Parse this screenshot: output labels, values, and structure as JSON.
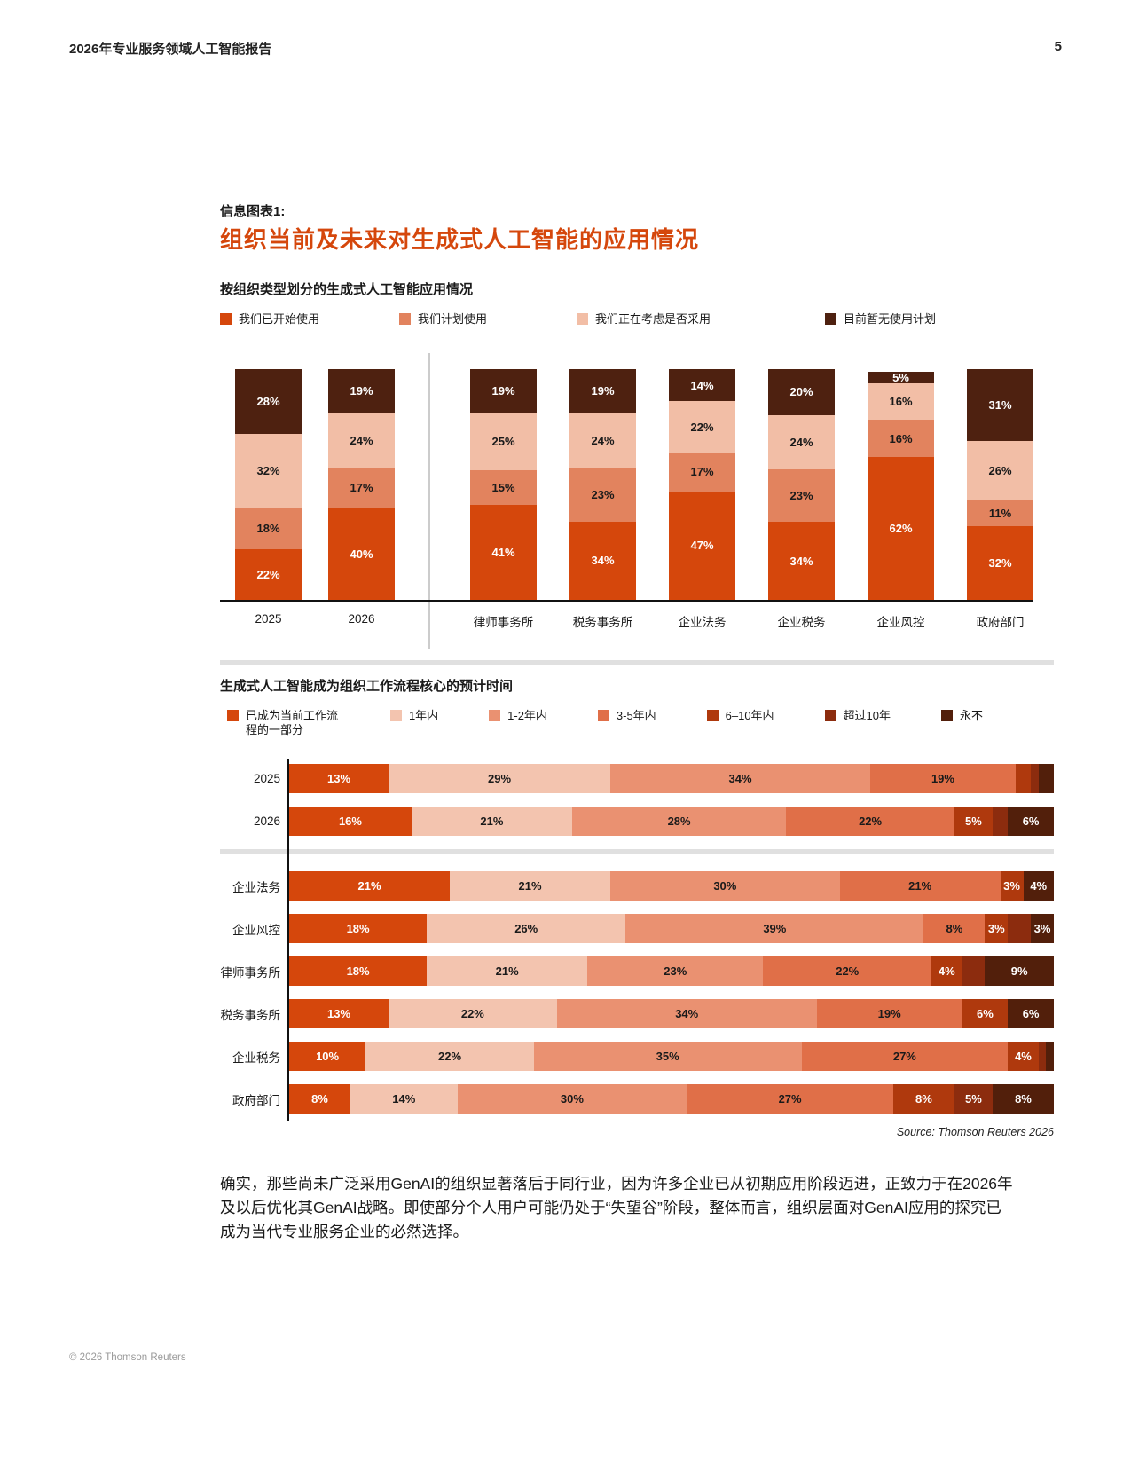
{
  "header": {
    "title": "2026年专业服务领域人工智能报告",
    "page_number": "5"
  },
  "infographic": {
    "label": "信息图表1:",
    "title": "组织当前及未来对生成式人工智能的应用情况"
  },
  "palette": {
    "started": "#D5470C",
    "plan": "#E2835E",
    "considering": "#F2BEA6",
    "no_plan": "#4E2110",
    "now": "#D5470C",
    "y1": "#F3C4AF",
    "y1_2": "#EA9171",
    "y3_5": "#E06F48",
    "y6_10": "#AF390D",
    "y10plus": "#8C2C0E",
    "never": "#521F0B"
  },
  "text_on": {
    "started": "#FFFFFF",
    "plan": "#1A1A1A",
    "considering": "#1A1A1A",
    "no_plan": "#FFFFFF",
    "now": "#FFFFFF",
    "y1": "#1A1A1A",
    "y1_2": "#1A1A1A",
    "y3_5": "#1A1A1A",
    "y6_10": "#FFFFFF",
    "y10plus": "#FFFFFF",
    "never": "#FFFFFF"
  },
  "chart_data": [
    {
      "type": "bar",
      "subtype": "vertical-stacked",
      "title": "按组织类型划分的生成式人工智能应用情况",
      "legend": [
        {
          "label": "我们已开始使用",
          "key": "started"
        },
        {
          "label": "我们计划使用",
          "key": "plan"
        },
        {
          "label": "我们正在考虑是否采用",
          "key": "considering"
        },
        {
          "label": "目前暂无使用计划",
          "key": "no_plan"
        }
      ],
      "categories": [
        "2025",
        "2026",
        "律师事务所",
        "税务事务所",
        "企业法务",
        "企业税务",
        "企业风控",
        "政府部门"
      ],
      "series": [
        {
          "name": "我们已开始使用",
          "values": [
            22,
            40,
            41,
            34,
            47,
            34,
            62,
            32
          ]
        },
        {
          "name": "我们计划使用",
          "values": [
            18,
            17,
            15,
            23,
            17,
            23,
            16,
            11
          ]
        },
        {
          "name": "我们正在考虑是否采用",
          "values": [
            32,
            24,
            25,
            24,
            22,
            24,
            16,
            26
          ]
        },
        {
          "name": "目前暂无使用计划",
          "values": [
            28,
            19,
            19,
            19,
            14,
            20,
            5,
            31
          ]
        }
      ],
      "columns": [
        {
          "label": "2025",
          "segments": [
            {
              "v": 28,
              "k": "no_plan"
            },
            {
              "v": 32,
              "k": "considering"
            },
            {
              "v": 18,
              "k": "plan"
            },
            {
              "v": 22,
              "k": "started"
            }
          ]
        },
        {
          "label": "2026",
          "segments": [
            {
              "v": 19,
              "k": "no_plan"
            },
            {
              "v": 24,
              "k": "considering"
            },
            {
              "v": 17,
              "k": "plan"
            },
            {
              "v": 40,
              "k": "started"
            }
          ]
        },
        {
          "label": "律师事务所",
          "segments": [
            {
              "v": 19,
              "k": "no_plan"
            },
            {
              "v": 25,
              "k": "considering"
            },
            {
              "v": 15,
              "k": "plan"
            },
            {
              "v": 41,
              "k": "started"
            }
          ]
        },
        {
          "label": "税务事务所",
          "segments": [
            {
              "v": 19,
              "k": "no_plan"
            },
            {
              "v": 24,
              "k": "considering"
            },
            {
              "v": 23,
              "k": "plan"
            },
            {
              "v": 34,
              "k": "started"
            }
          ]
        },
        {
          "label": "企业法务",
          "segments": [
            {
              "v": 14,
              "k": "no_plan"
            },
            {
              "v": 22,
              "k": "considering"
            },
            {
              "v": 17,
              "k": "plan"
            },
            {
              "v": 47,
              "k": "started"
            }
          ]
        },
        {
          "label": "企业税务",
          "segments": [
            {
              "v": 20,
              "k": "no_plan"
            },
            {
              "v": 24,
              "k": "considering"
            },
            {
              "v": 23,
              "k": "plan"
            },
            {
              "v": 34,
              "k": "started"
            }
          ]
        },
        {
          "label": "企业风控",
          "segments": [
            {
              "v": 5,
              "k": "no_plan"
            },
            {
              "v": 16,
              "k": "considering"
            },
            {
              "v": 16,
              "k": "plan"
            },
            {
              "v": 62,
              "k": "started"
            }
          ]
        },
        {
          "label": "政府部门",
          "segments": [
            {
              "v": 31,
              "k": "no_plan"
            },
            {
              "v": 26,
              "k": "considering"
            },
            {
              "v": 11,
              "k": "plan"
            },
            {
              "v": 32,
              "k": "started"
            }
          ]
        }
      ]
    },
    {
      "type": "bar",
      "subtype": "horizontal-stacked",
      "title": "生成式人工智能成为组织工作流程核心的预计时间",
      "source": "Source: Thomson Reuters 2026",
      "legend": [
        {
          "label": "已成为当前工作流程的一部分",
          "key": "now"
        },
        {
          "label": "1年内",
          "key": "y1"
        },
        {
          "label": "1-2年内",
          "key": "y1_2"
        },
        {
          "label": "3-5年内",
          "key": "y3_5"
        },
        {
          "label": "6–10年内",
          "key": "y6_10"
        },
        {
          "label": "超过10年",
          "key": "y10plus"
        },
        {
          "label": "永不",
          "key": "never"
        }
      ],
      "rows": [
        {
          "label": "2025",
          "segments": [
            {
              "v": 13,
              "k": "now",
              "show": true
            },
            {
              "v": 29,
              "k": "y1",
              "show": true
            },
            {
              "v": 34,
              "k": "y1_2",
              "show": true
            },
            {
              "v": 19,
              "k": "y3_5",
              "show": true
            },
            {
              "v": 2,
              "k": "y6_10",
              "show": false
            },
            {
              "v": 1,
              "k": "y10plus",
              "show": false
            },
            {
              "v": 2,
              "k": "never",
              "show": false
            }
          ]
        },
        {
          "label": "2026",
          "segments": [
            {
              "v": 16,
              "k": "now",
              "show": true
            },
            {
              "v": 21,
              "k": "y1",
              "show": true
            },
            {
              "v": 28,
              "k": "y1_2",
              "show": true
            },
            {
              "v": 22,
              "k": "y3_5",
              "show": true
            },
            {
              "v": 5,
              "k": "y6_10",
              "show": true
            },
            {
              "v": 2,
              "k": "y10plus",
              "show": false
            },
            {
              "v": 6,
              "k": "never",
              "show": true
            }
          ]
        },
        {
          "label": "企业法务",
          "segments": [
            {
              "v": 21,
              "k": "now",
              "show": true
            },
            {
              "v": 21,
              "k": "y1",
              "show": true
            },
            {
              "v": 30,
              "k": "y1_2",
              "show": true
            },
            {
              "v": 21,
              "k": "y3_5",
              "show": true
            },
            {
              "v": 3,
              "k": "y6_10",
              "show": true
            },
            {
              "v": 0,
              "k": "y10plus",
              "show": false
            },
            {
              "v": 4,
              "k": "never",
              "show": true
            }
          ]
        },
        {
          "label": "企业风控",
          "segments": [
            {
              "v": 18,
              "k": "now",
              "show": true
            },
            {
              "v": 26,
              "k": "y1",
              "show": true
            },
            {
              "v": 39,
              "k": "y1_2",
              "show": true
            },
            {
              "v": 8,
              "k": "y3_5",
              "show": true
            },
            {
              "v": 3,
              "k": "y6_10",
              "show": true
            },
            {
              "v": 3,
              "k": "y10plus",
              "show": false
            },
            {
              "v": 3,
              "k": "never",
              "show": true
            }
          ]
        },
        {
          "label": "律师事务所",
          "segments": [
            {
              "v": 18,
              "k": "now",
              "show": true
            },
            {
              "v": 21,
              "k": "y1",
              "show": true
            },
            {
              "v": 23,
              "k": "y1_2",
              "show": true
            },
            {
              "v": 22,
              "k": "y3_5",
              "show": true
            },
            {
              "v": 4,
              "k": "y6_10",
              "show": true
            },
            {
              "v": 3,
              "k": "y10plus",
              "show": false
            },
            {
              "v": 9,
              "k": "never",
              "show": true
            }
          ]
        },
        {
          "label": "税务事务所",
          "segments": [
            {
              "v": 13,
              "k": "now",
              "show": true
            },
            {
              "v": 22,
              "k": "y1",
              "show": true
            },
            {
              "v": 34,
              "k": "y1_2",
              "show": true
            },
            {
              "v": 19,
              "k": "y3_5",
              "show": true
            },
            {
              "v": 6,
              "k": "y6_10",
              "show": true
            },
            {
              "v": 0,
              "k": "y10plus",
              "show": false
            },
            {
              "v": 6,
              "k": "never",
              "show": true
            }
          ]
        },
        {
          "label": "企业税务",
          "segments": [
            {
              "v": 10,
              "k": "now",
              "show": true
            },
            {
              "v": 22,
              "k": "y1",
              "show": true
            },
            {
              "v": 35,
              "k": "y1_2",
              "show": true
            },
            {
              "v": 27,
              "k": "y3_5",
              "show": true
            },
            {
              "v": 4,
              "k": "y6_10",
              "show": true
            },
            {
              "v": 1,
              "k": "y10plus",
              "show": false
            },
            {
              "v": 1,
              "k": "never",
              "show": false
            }
          ]
        },
        {
          "label": "政府部门",
          "segments": [
            {
              "v": 8,
              "k": "now",
              "show": true
            },
            {
              "v": 14,
              "k": "y1",
              "show": true
            },
            {
              "v": 30,
              "k": "y1_2",
              "show": true
            },
            {
              "v": 27,
              "k": "y3_5",
              "show": true
            },
            {
              "v": 8,
              "k": "y6_10",
              "show": true
            },
            {
              "v": 5,
              "k": "y10plus",
              "show": true
            },
            {
              "v": 8,
              "k": "never",
              "show": true
            }
          ]
        }
      ]
    }
  ],
  "paragraph": "确实，那些尚未广泛采用GenAI的组织显著落后于同行业，因为许多企业已从初期应用阶段迈进，正致力于在2026年及以后优化其GenAI战略。即使部分个人用户可能仍处于“失望谷”阶段，整体而言，组织层面对GenAI应用的探究已成为当代专业服务企业的必然选择。",
  "footer": {
    "copyright": "© 2026 Thomson Reuters"
  }
}
